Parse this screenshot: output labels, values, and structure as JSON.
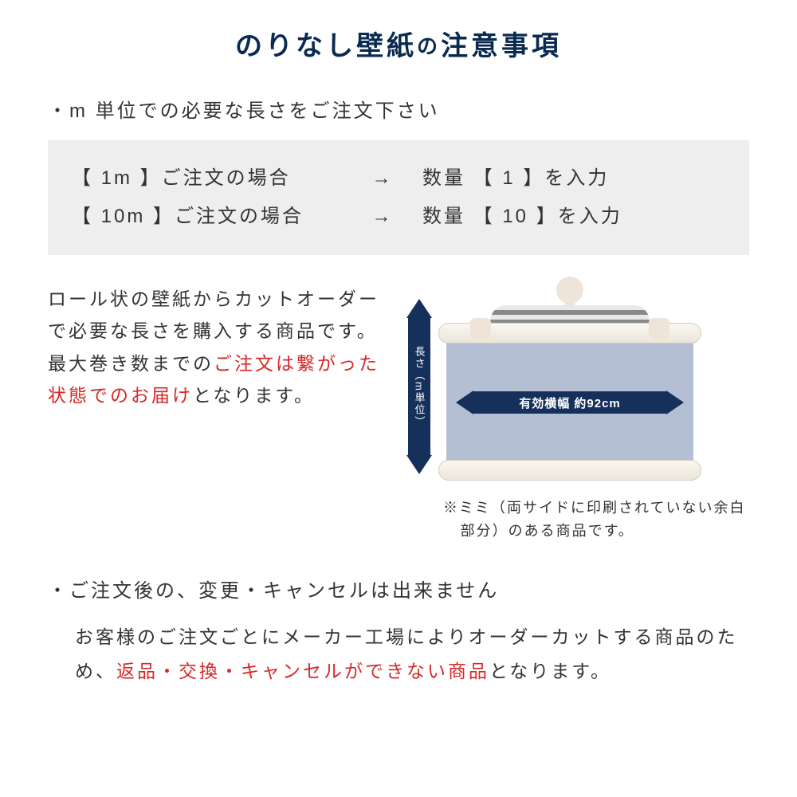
{
  "title": {
    "full": "のりなし壁紙の注意事項",
    "part1": "のりなし壁紙",
    "connector": "の",
    "part2": "注意事項"
  },
  "bullet1": "・m 単位での必要な長さをご注文下さい",
  "example": {
    "row1": {
      "left": "【 1m 】ご注文の場合",
      "arrow": "→",
      "right": "数量 【 1 】を入力"
    },
    "row2": {
      "left": "【 10m 】ご注文の場合",
      "arrow": "→",
      "right": "数量 【 10 】を入力"
    }
  },
  "mid_text": {
    "line1": "ロール状の壁紙からカットオーダーで必要な長さを購入する商品です。最大巻き数までの",
    "red1": "ご注文は繋がった状態でのお届け",
    "line2": "となります。"
  },
  "diagram": {
    "vertical_label": "長さ（m単位）",
    "width_label": "有効横幅 約92cm",
    "mimi_note": "※ミミ（両サイドに印刷されていない余白部分）のある商品です。"
  },
  "bullet2": "・ご注文後の、変更・キャンセルは出来ません",
  "body2": {
    "t1": "お客様のご注文ごとにメーカー工場によりオーダーカットする商品のため、",
    "red": "返品・交換・キャンセルができない商品",
    "t2": "となります。"
  },
  "colors": {
    "navy": "#0a2a50",
    "arrow_navy": "#16305c",
    "red": "#d82727",
    "example_bg": "#eeeeee",
    "paper": "#b5bfd3"
  }
}
